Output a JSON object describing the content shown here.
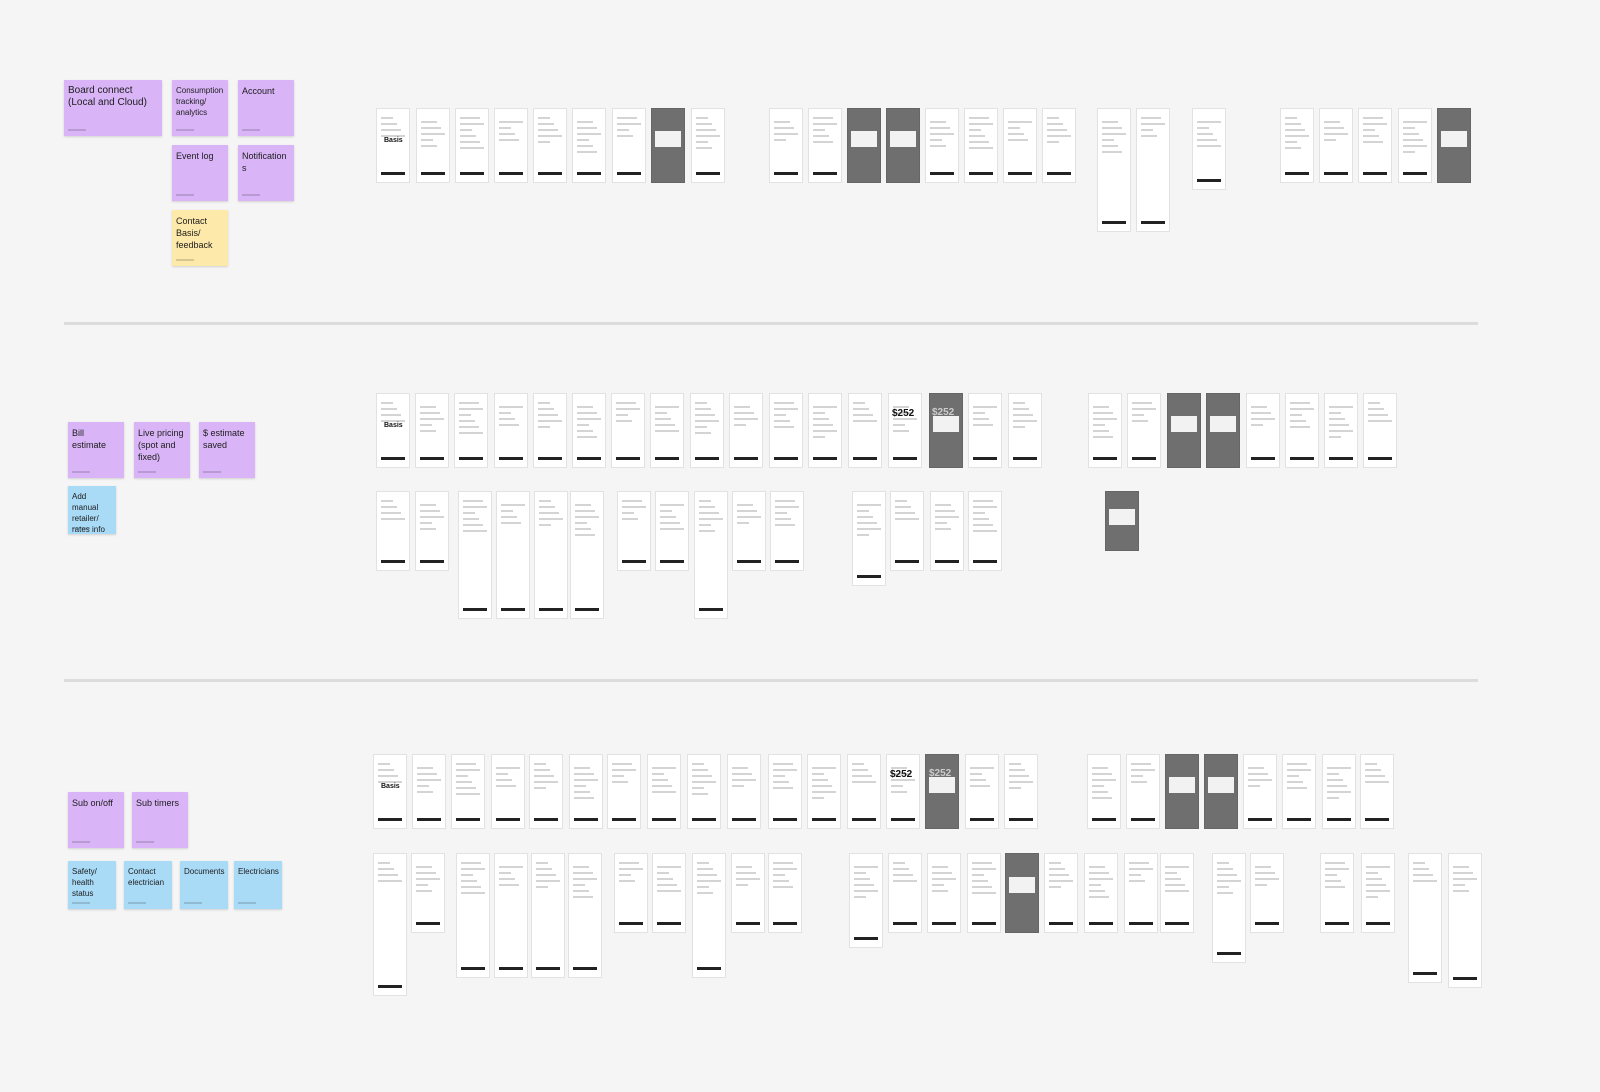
{
  "sections": [
    {
      "stickies": [
        {
          "label": "Board connect (Local and Cloud)"
        },
        {
          "label": "Consumption tracking/ analytics"
        },
        {
          "label": "Account"
        },
        {
          "label": "Event log"
        },
        {
          "label": "Notifications"
        },
        {
          "label": "Contact Basis/ feedback"
        }
      ]
    },
    {
      "stickies": [
        {
          "label": "Bill estimate"
        },
        {
          "label": "Live pricing (spot and fixed)"
        },
        {
          "label": "$ estimate saved"
        },
        {
          "label": "Add manual retailer/ rates info"
        }
      ]
    },
    {
      "stickies": [
        {
          "label": "Sub on/off"
        },
        {
          "label": "Sub timers"
        },
        {
          "label": "Safety/ health status"
        },
        {
          "label": "Contact electrician"
        },
        {
          "label": "Documents"
        },
        {
          "label": "Electricians"
        }
      ]
    }
  ],
  "screen_texts": [
    "Basis",
    "Basis",
    "Basis",
    "$252",
    "$252",
    "$252",
    "$252"
  ]
}
